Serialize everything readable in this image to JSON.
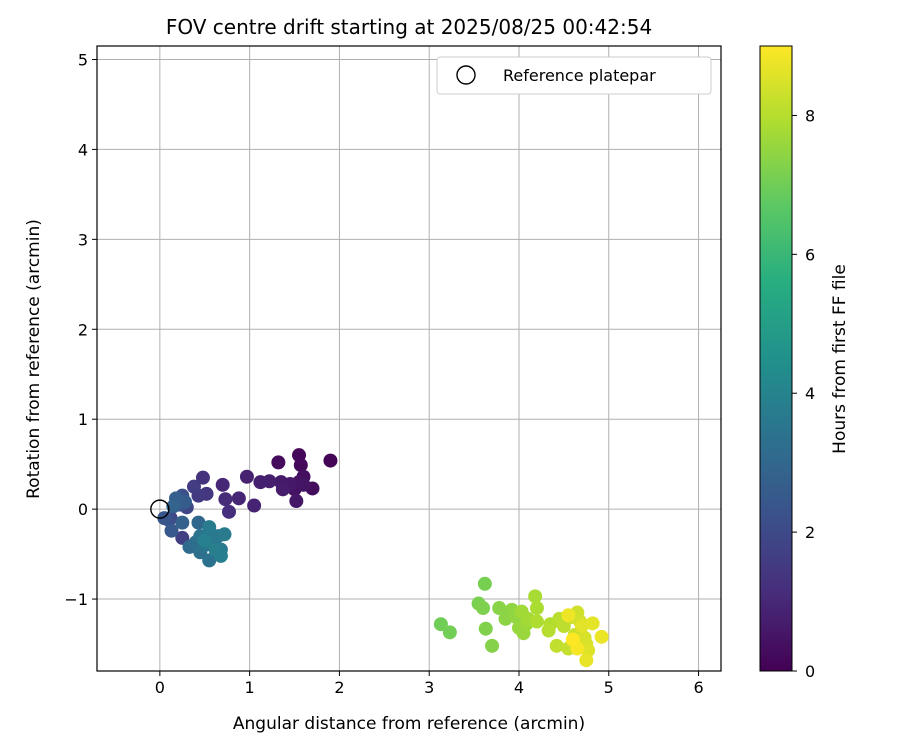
{
  "chart_data": {
    "type": "scatter",
    "title": "FOV centre drift starting at 2025/08/25 00:42:54",
    "xlabel": "Angular distance from reference (arcmin)",
    "ylabel": "Rotation from reference (arcmin)",
    "xlim": [
      -0.7,
      6.25
    ],
    "ylim": [
      -1.8,
      5.15
    ],
    "xticks": [
      0,
      1,
      2,
      3,
      4,
      5,
      6
    ],
    "yticks": [
      -1,
      0,
      1,
      2,
      3,
      4,
      5
    ],
    "xtick_labels": [
      "0",
      "1",
      "2",
      "3",
      "4",
      "5",
      "6"
    ],
    "ytick_labels": [
      "−1",
      "0",
      "1",
      "2",
      "3",
      "4",
      "5"
    ],
    "grid": true,
    "legend": {
      "position": "top-right",
      "entries": [
        {
          "label": "Reference platepar",
          "marker": "open-circle"
        }
      ]
    },
    "reference_point": {
      "x": 0,
      "y": 0
    },
    "colorbar": {
      "label": "Hours from first FF file",
      "colormap": "viridis",
      "range": [
        0,
        9
      ],
      "ticks": [
        0,
        2,
        4,
        6,
        8
      ],
      "tick_labels": [
        "0",
        "2",
        "4",
        "6",
        "8"
      ]
    },
    "points": [
      {
        "x": 1.9,
        "y": 0.54,
        "h": 0.1
      },
      {
        "x": 1.55,
        "y": 0.6,
        "h": 0.15
      },
      {
        "x": 1.57,
        "y": 0.49,
        "h": 0.2
      },
      {
        "x": 1.32,
        "y": 0.52,
        "h": 0.25
      },
      {
        "x": 1.7,
        "y": 0.23,
        "h": 0.3
      },
      {
        "x": 1.6,
        "y": 0.36,
        "h": 0.35
      },
      {
        "x": 1.55,
        "y": 0.3,
        "h": 0.4
      },
      {
        "x": 1.5,
        "y": 0.22,
        "h": 0.45
      },
      {
        "x": 1.6,
        "y": 0.27,
        "h": 0.5
      },
      {
        "x": 1.52,
        "y": 0.09,
        "h": 0.55
      },
      {
        "x": 1.45,
        "y": 0.28,
        "h": 0.6
      },
      {
        "x": 1.35,
        "y": 0.3,
        "h": 0.65
      },
      {
        "x": 1.37,
        "y": 0.22,
        "h": 0.7
      },
      {
        "x": 1.22,
        "y": 0.31,
        "h": 0.75
      },
      {
        "x": 1.12,
        "y": 0.3,
        "h": 0.8
      },
      {
        "x": 0.97,
        "y": 0.36,
        "h": 0.85
      },
      {
        "x": 1.05,
        "y": 0.04,
        "h": 0.9
      },
      {
        "x": 0.88,
        "y": 0.12,
        "h": 0.95
      },
      {
        "x": 0.7,
        "y": 0.27,
        "h": 1.0
      },
      {
        "x": 0.73,
        "y": 0.11,
        "h": 1.1
      },
      {
        "x": 0.77,
        "y": -0.03,
        "h": 1.2
      },
      {
        "x": 0.48,
        "y": 0.35,
        "h": 1.3
      },
      {
        "x": 0.52,
        "y": 0.17,
        "h": 1.4
      },
      {
        "x": 0.43,
        "y": 0.15,
        "h": 1.5
      },
      {
        "x": 0.38,
        "y": 0.25,
        "h": 1.6
      },
      {
        "x": 0.25,
        "y": -0.32,
        "h": 1.7
      },
      {
        "x": 0.12,
        "y": -0.1,
        "h": 1.8
      },
      {
        "x": 0.3,
        "y": 0.02,
        "h": 1.9
      },
      {
        "x": 0.2,
        "y": 0.1,
        "h": 2.0
      },
      {
        "x": 0.1,
        "y": -0.12,
        "h": 2.1
      },
      {
        "x": 0.25,
        "y": 0.15,
        "h": 2.2
      },
      {
        "x": 0.22,
        "y": 0.05,
        "h": 2.3
      },
      {
        "x": 0.05,
        "y": -0.1,
        "h": 2.4
      },
      {
        "x": 0.13,
        "y": -0.24,
        "h": 2.5
      },
      {
        "x": 0.28,
        "y": 0.08,
        "h": 2.6
      },
      {
        "x": 0.18,
        "y": 0.12,
        "h": 2.7
      },
      {
        "x": 0.25,
        "y": -0.15,
        "h": 2.8
      },
      {
        "x": 0.15,
        "y": 0.03,
        "h": 2.9
      },
      {
        "x": 0.43,
        "y": -0.15,
        "h": 3.0
      },
      {
        "x": 0.33,
        "y": -0.42,
        "h": 3.1
      },
      {
        "x": 0.4,
        "y": -0.37,
        "h": 3.2
      },
      {
        "x": 0.45,
        "y": -0.48,
        "h": 3.3
      },
      {
        "x": 0.55,
        "y": -0.57,
        "h": 3.35
      },
      {
        "x": 0.45,
        "y": -0.3,
        "h": 3.4
      },
      {
        "x": 0.5,
        "y": -0.4,
        "h": 3.45
      },
      {
        "x": 0.55,
        "y": -0.25,
        "h": 3.5
      },
      {
        "x": 0.6,
        "y": -0.38,
        "h": 3.55
      },
      {
        "x": 0.65,
        "y": -0.3,
        "h": 3.6
      },
      {
        "x": 0.68,
        "y": -0.45,
        "h": 3.65
      },
      {
        "x": 0.72,
        "y": -0.28,
        "h": 3.7
      },
      {
        "x": 0.55,
        "y": -0.2,
        "h": 3.75
      },
      {
        "x": 0.62,
        "y": -0.45,
        "h": 3.8
      },
      {
        "x": 0.68,
        "y": -0.52,
        "h": 3.85
      },
      {
        "x": 0.5,
        "y": -0.35,
        "h": 3.9
      },
      {
        "x": 3.13,
        "y": -1.28,
        "h": 7.0
      },
      {
        "x": 3.23,
        "y": -1.37,
        "h": 7.05
      },
      {
        "x": 3.62,
        "y": -0.83,
        "h": 7.1
      },
      {
        "x": 3.55,
        "y": -1.05,
        "h": 7.15
      },
      {
        "x": 3.6,
        "y": -1.1,
        "h": 7.2
      },
      {
        "x": 3.63,
        "y": -1.33,
        "h": 7.25
      },
      {
        "x": 3.7,
        "y": -1.52,
        "h": 7.3
      },
      {
        "x": 3.78,
        "y": -1.1,
        "h": 7.35
      },
      {
        "x": 3.85,
        "y": -1.22,
        "h": 7.4
      },
      {
        "x": 3.92,
        "y": -1.12,
        "h": 7.45
      },
      {
        "x": 3.97,
        "y": -1.2,
        "h": 7.5
      },
      {
        "x": 4.0,
        "y": -1.32,
        "h": 7.55
      },
      {
        "x": 4.05,
        "y": -1.38,
        "h": 7.6
      },
      {
        "x": 4.08,
        "y": -1.28,
        "h": 7.65
      },
      {
        "x": 4.03,
        "y": -1.14,
        "h": 7.7
      },
      {
        "x": 4.1,
        "y": -1.22,
        "h": 7.75
      },
      {
        "x": 4.18,
        "y": -0.97,
        "h": 7.8
      },
      {
        "x": 4.2,
        "y": -1.1,
        "h": 7.85
      },
      {
        "x": 4.2,
        "y": -1.25,
        "h": 7.9
      },
      {
        "x": 4.35,
        "y": -1.28,
        "h": 7.95
      },
      {
        "x": 4.33,
        "y": -1.35,
        "h": 8.0
      },
      {
        "x": 4.45,
        "y": -1.22,
        "h": 8.05
      },
      {
        "x": 4.5,
        "y": -1.3,
        "h": 8.1
      },
      {
        "x": 4.42,
        "y": -1.52,
        "h": 8.15
      },
      {
        "x": 4.55,
        "y": -1.55,
        "h": 8.2
      },
      {
        "x": 4.62,
        "y": -1.4,
        "h": 8.25
      },
      {
        "x": 4.58,
        "y": -1.2,
        "h": 8.3
      },
      {
        "x": 4.65,
        "y": -1.15,
        "h": 8.35
      },
      {
        "x": 4.68,
        "y": -1.25,
        "h": 8.4
      },
      {
        "x": 4.73,
        "y": -1.43,
        "h": 8.45
      },
      {
        "x": 4.75,
        "y": -1.5,
        "h": 8.5
      },
      {
        "x": 4.77,
        "y": -1.57,
        "h": 8.55
      },
      {
        "x": 4.7,
        "y": -1.3,
        "h": 8.6
      },
      {
        "x": 4.82,
        "y": -1.27,
        "h": 8.65
      },
      {
        "x": 4.75,
        "y": -1.68,
        "h": 8.7
      },
      {
        "x": 4.92,
        "y": -1.42,
        "h": 8.75
      },
      {
        "x": 4.55,
        "y": -1.18,
        "h": 8.8
      },
      {
        "x": 4.65,
        "y": -1.55,
        "h": 8.9
      },
      {
        "x": 4.6,
        "y": -1.45,
        "h": 9.0
      }
    ]
  }
}
